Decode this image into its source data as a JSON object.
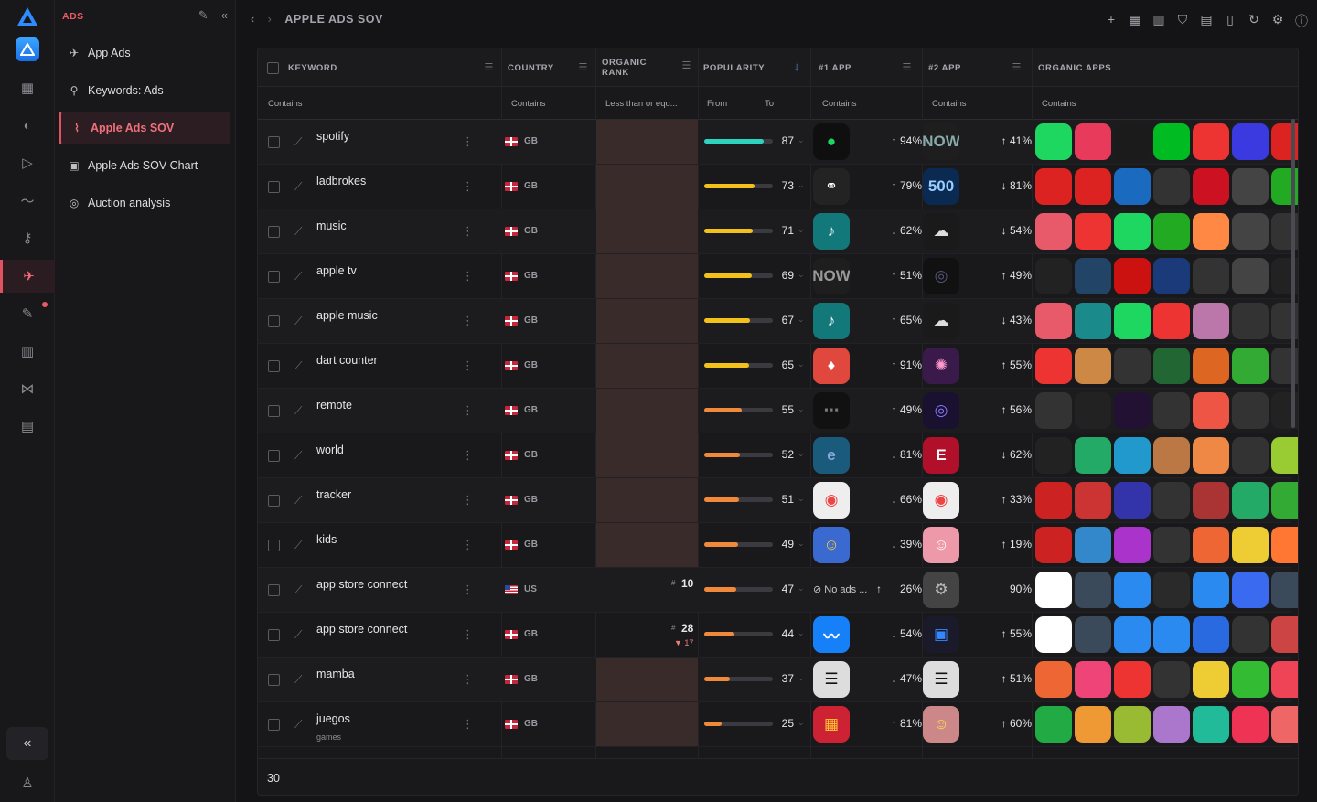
{
  "sidebar": {
    "section": "ADS",
    "items": [
      {
        "label": "App Ads",
        "icon": "megaphone-icon"
      },
      {
        "label": "Keywords: Ads",
        "icon": "keywords-icon"
      },
      {
        "label": "Apple Ads SOV",
        "icon": "chart-line-icon",
        "active": true
      },
      {
        "label": "Apple Ads SOV Chart",
        "icon": "chart-box-icon"
      },
      {
        "label": "Auction analysis",
        "icon": "auction-icon"
      }
    ]
  },
  "header": {
    "title": "APPLE ADS SOV"
  },
  "table": {
    "columns": {
      "keyword": "KEYWORD",
      "country": "COUNTRY",
      "organic_rank": "ORGANIC RANK",
      "popularity": "POPULARITY",
      "app1": "#1 APP",
      "app2": "#2 APP",
      "organic_apps": "ORGANIC APPS"
    },
    "filters": {
      "keyword": "Contains",
      "country": "Contains",
      "organic_rank": "Less than or equ...",
      "pop_from": "From",
      "pop_to": "To",
      "app1": "Contains",
      "app2": "Contains",
      "organic_apps": "Contains"
    },
    "rows": [
      {
        "keyword": "spotify",
        "country": "GB",
        "popularity": 87,
        "app1_share": "94%",
        "app1_dir": "up",
        "app2_share": "41%",
        "app2_dir": "up"
      },
      {
        "keyword": "ladbrokes",
        "country": "GB",
        "popularity": 73,
        "app1_share": "79%",
        "app1_dir": "up",
        "app2_share": "81%",
        "app2_dir": "down"
      },
      {
        "keyword": "music",
        "country": "GB",
        "popularity": 71,
        "app1_share": "62%",
        "app1_dir": "down",
        "app2_share": "54%",
        "app2_dir": "down"
      },
      {
        "keyword": "apple tv",
        "country": "GB",
        "popularity": 69,
        "app1_share": "51%",
        "app1_dir": "up",
        "app2_share": "49%",
        "app2_dir": "up"
      },
      {
        "keyword": "apple music",
        "country": "GB",
        "popularity": 67,
        "app1_share": "65%",
        "app1_dir": "up",
        "app2_share": "43%",
        "app2_dir": "down"
      },
      {
        "keyword": "dart counter",
        "country": "GB",
        "popularity": 65,
        "app1_share": "91%",
        "app1_dir": "up",
        "app2_share": "55%",
        "app2_dir": "up"
      },
      {
        "keyword": "remote",
        "country": "GB",
        "popularity": 55,
        "app1_share": "49%",
        "app1_dir": "up",
        "app2_share": "56%",
        "app2_dir": "up"
      },
      {
        "keyword": "world",
        "country": "GB",
        "popularity": 52,
        "app1_share": "81%",
        "app1_dir": "down",
        "app2_share": "62%",
        "app2_dir": "down"
      },
      {
        "keyword": "tracker",
        "country": "GB",
        "popularity": 51,
        "app1_share": "66%",
        "app1_dir": "down",
        "app2_share": "33%",
        "app2_dir": "up"
      },
      {
        "keyword": "kids",
        "country": "GB",
        "popularity": 49,
        "app1_share": "39%",
        "app1_dir": "down",
        "app2_share": "19%",
        "app2_dir": "up"
      },
      {
        "keyword": "app store connect",
        "country": "US",
        "rank": "10",
        "popularity": 47,
        "app1_label": "No ads ...",
        "app1_share": "26%",
        "app1_dir": "up",
        "app2_share": "90%",
        "app2_dir": ""
      },
      {
        "keyword": "app store connect",
        "country": "GB",
        "rank": "28",
        "rank_delta": "▼ 17",
        "popularity": 44,
        "app1_share": "54%",
        "app1_dir": "down",
        "app2_share": "55%",
        "app2_dir": "up"
      },
      {
        "keyword": "mamba",
        "country": "GB",
        "popularity": 37,
        "app1_share": "47%",
        "app1_dir": "down",
        "app2_share": "51%",
        "app2_dir": "up"
      },
      {
        "keyword": "juegos",
        "sub": "games",
        "country": "GB",
        "popularity": 25,
        "app1_share": "81%",
        "app1_dir": "up",
        "app2_share": "60%",
        "app2_dir": "up"
      }
    ],
    "footer_count": "30"
  },
  "colors": {
    "accent": "#e0525f",
    "bar_high": "#2ed3c0",
    "bar_mid": "#f2c21b",
    "bar_low": "#f08a3a"
  }
}
